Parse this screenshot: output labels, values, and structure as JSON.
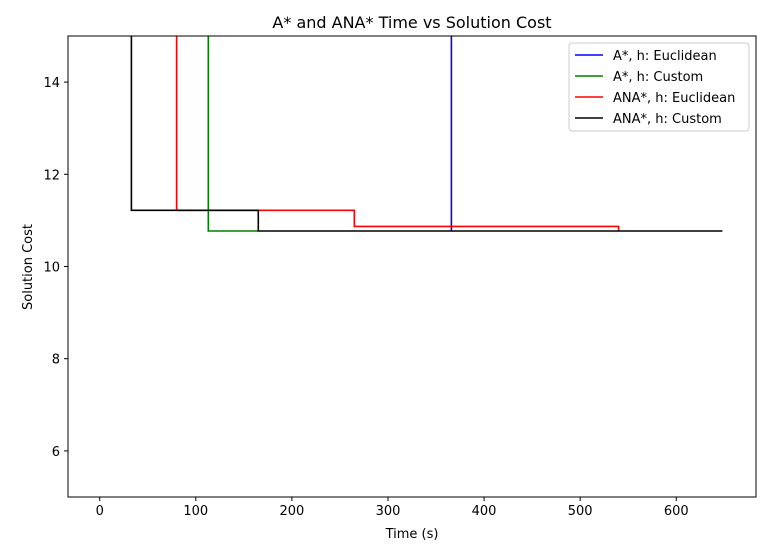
{
  "chart_data": {
    "type": "line",
    "step": true,
    "title": "A* and ANA* Time vs Solution Cost",
    "xlabel": "Time (s)",
    "ylabel": "Solution Cost",
    "xlim": [
      -33,
      683
    ],
    "ylim": [
      5,
      15
    ],
    "xticks": [
      0,
      100,
      200,
      300,
      400,
      500,
      600
    ],
    "yticks": [
      6,
      8,
      10,
      12,
      14
    ],
    "grid": false,
    "legend_position": "top-right",
    "series": [
      {
        "name": "A*, h: Euclidean",
        "color": "#0000ff",
        "points": [
          [
            366,
            16
          ],
          [
            366,
            10.77
          ]
        ]
      },
      {
        "name": "A*, h: Custom",
        "color": "#008000",
        "points": [
          [
            113,
            16
          ],
          [
            113,
            10.77
          ],
          [
            165,
            10.77
          ]
        ]
      },
      {
        "name": "ANA*, h: Euclidean",
        "color": "#ff0000",
        "points": [
          [
            80,
            16
          ],
          [
            80,
            11.22
          ],
          [
            265,
            11.22
          ],
          [
            265,
            10.87
          ],
          [
            540,
            10.87
          ],
          [
            540,
            10.77
          ]
        ]
      },
      {
        "name": "ANA*, h: Custom",
        "color": "#000000",
        "points": [
          [
            33,
            16
          ],
          [
            33,
            11.22
          ],
          [
            165,
            11.22
          ],
          [
            165,
            10.77
          ],
          [
            648,
            10.77
          ]
        ]
      }
    ]
  }
}
